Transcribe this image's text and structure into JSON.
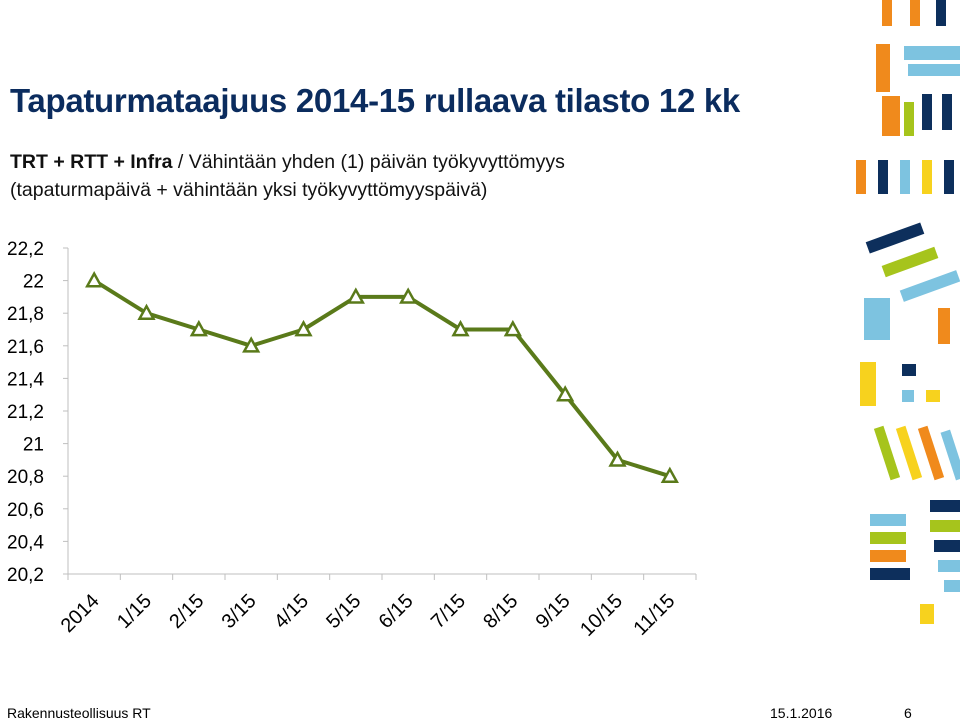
{
  "title": "Tapaturmataajuus 2014-15 rullaava tilasto 12 kk",
  "subtitle": {
    "bold": "TRT + RTT + Infra",
    "rest": " / Vähintään yhden (1) päivän työkyvyttömyys",
    "line2": "(tapaturmapäivä + vähintään yksi työkyvyttömyyspäivä)"
  },
  "chart_data": {
    "type": "line",
    "categories": [
      "2014",
      "1/15",
      "2/15",
      "3/15",
      "4/15",
      "5/15",
      "6/15",
      "7/15",
      "8/15",
      "9/15",
      "10/15",
      "11/15"
    ],
    "values": [
      22.0,
      21.8,
      21.7,
      21.6,
      21.7,
      21.9,
      21.9,
      21.7,
      21.7,
      21.3,
      20.9,
      20.8
    ],
    "yticks": [
      "22,2",
      "22",
      "21,8",
      "21,6",
      "21,4",
      "21,2",
      "21",
      "20,8",
      "20,6",
      "20,4",
      "20,2"
    ],
    "ylim": [
      20.2,
      22.2
    ],
    "title": "",
    "xlabel": "",
    "ylabel": "",
    "color": "#5a7a1a",
    "marker": "triangle",
    "grid": false
  },
  "footer": {
    "org": "Rakennusteollisuus RT",
    "date": "15.1.2016",
    "page": "6"
  },
  "decor_colors": {
    "orange": "#f08a1c",
    "navy": "#0d2f5c",
    "lightblue": "#7dc3e0",
    "green": "#a6c41c",
    "yellow": "#f7d21e"
  }
}
